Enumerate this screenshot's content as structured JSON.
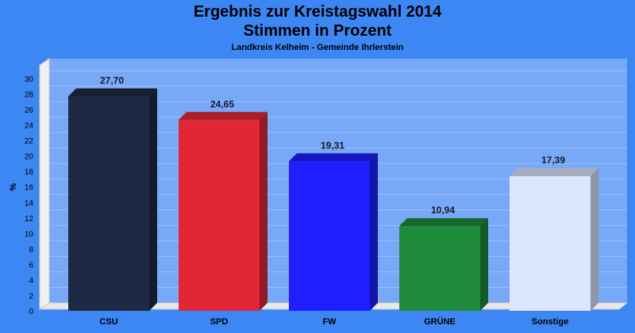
{
  "chart_data": {
    "type": "bar",
    "title": "Ergebnis zur Kreistagswahl 2014",
    "subtitle_line": "Stimmen in Prozent",
    "subtitle": "Landkreis Kelheim - Gemeinde Ihrlerstein",
    "ylabel": "%",
    "xlabel": "",
    "ylim": [
      0,
      30
    ],
    "yticks": [
      0,
      2,
      4,
      6,
      8,
      10,
      12,
      14,
      16,
      18,
      20,
      22,
      24,
      26,
      28,
      30
    ],
    "grid": true,
    "categories": [
      "CSU",
      "SPD",
      "FW",
      "GRÜNE",
      "Sonstige"
    ],
    "values": [
      27.7,
      24.65,
      19.31,
      10.94,
      17.39
    ],
    "value_labels": [
      "27,70",
      "24,65",
      "19,31",
      "10,94",
      "17,39"
    ],
    "colors": [
      "#1e2a44",
      "#e32636",
      "#1e1eff",
      "#1e8a3c",
      "#dce6ff"
    ]
  },
  "colors": {
    "background": "#3d87f5",
    "plot_background": "#78a8f8",
    "gridline": "#9cbff9"
  }
}
